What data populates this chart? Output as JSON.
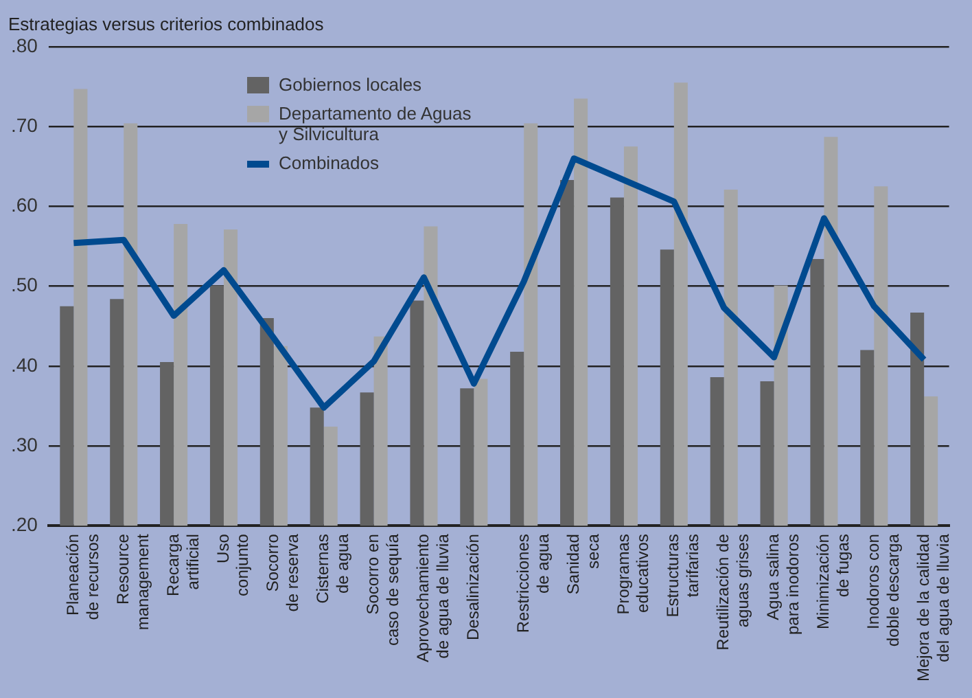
{
  "chart_data": {
    "type": "bar",
    "title": "Estrategias versus criterios combinados",
    "categories": [
      "Planeación\nde recursos",
      "Resource\nmanagement",
      "Recarga\nartificial",
      "Uso\nconjunto",
      "Socorro\nde reserva",
      "Cisternas\nde agua",
      "Socorro en\ncaso de sequía",
      "Aprovechamiento\nde agua de lluvia",
      "Desalinización",
      "Restricciones\nde agua",
      "Sanidad\nseca",
      "Programas\neducativos",
      "Estructuras\ntarifarias",
      "Reutilización de\naguas grises",
      "Agua salina\npara inodoros",
      "Minimización\nde fugas",
      "Inodoros con\ndoble descarga",
      "Mejora de la calidad\ndel agua de lluvia"
    ],
    "series": [
      {
        "name": "Gobiernos locales",
        "color": "#636363",
        "values": [
          0.475,
          0.484,
          0.405,
          0.501,
          0.46,
          0.348,
          0.367,
          0.482,
          0.372,
          0.418,
          0.633,
          0.611,
          0.546,
          0.386,
          0.381,
          0.534,
          0.42,
          0.467
        ]
      },
      {
        "name": "Departamento de Aguas y Silvicultura",
        "color": "#a6a6a6",
        "values": [
          0.747,
          0.704,
          0.578,
          0.571,
          0.425,
          0.324,
          0.437,
          0.575,
          0.384,
          0.704,
          0.735,
          0.675,
          0.755,
          0.621,
          0.501,
          0.687,
          0.625,
          0.362
        ]
      },
      {
        "name": "Combinados",
        "type": "line",
        "color": "#004a8f",
        "values": [
          0.554,
          0.558,
          0.463,
          0.52,
          0.435,
          0.348,
          0.406,
          0.511,
          0.378,
          0.506,
          0.66,
          0.633,
          0.606,
          0.473,
          0.411,
          0.585,
          0.475,
          0.408
        ]
      }
    ],
    "ylim": [
      0.2,
      0.8
    ],
    "yticks": [
      {
        "value": 0.2,
        "label": ".20"
      },
      {
        "value": 0.3,
        "label": ".30"
      },
      {
        "value": 0.4,
        "label": ".40"
      },
      {
        "value": 0.5,
        "label": ".50"
      },
      {
        "value": 0.6,
        "label": ".60"
      },
      {
        "value": 0.7,
        "label": ".70"
      },
      {
        "value": 0.8,
        "label": ".80"
      }
    ],
    "grid": "y",
    "legend": "top",
    "marker": "none",
    "line_style": "solid"
  }
}
